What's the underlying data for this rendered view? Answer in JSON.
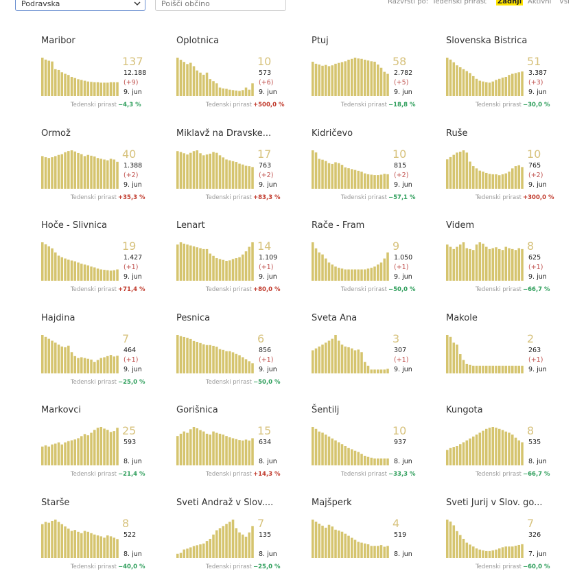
{
  "controls": {
    "region": "Podravska",
    "search_placeholder": "Poišči občino",
    "sort_label": "Razvrsti po:",
    "sort_options": [
      "Tedenski prirast",
      "Zadnji",
      "Aktivni",
      "Vsi"
    ],
    "sort_selected": 1
  },
  "cards": [
    {
      "name": "Maribor",
      "active": 137,
      "total": "12.188",
      "change": "(+9)",
      "date": "9. jun",
      "growth_label": "Tedenski prirast",
      "growth": "−4,3 %",
      "bars": [
        100,
        95,
        92,
        90,
        70,
        68,
        62,
        58,
        55,
        50,
        47,
        44,
        42,
        40,
        38,
        37,
        36,
        36,
        35,
        35,
        35,
        36,
        36,
        36
      ]
    },
    {
      "name": "Oplotnica",
      "active": 10,
      "total": "573",
      "change": "(+6)",
      "date": "9. jun",
      "growth_label": "Tedenski prirast",
      "growth": "+500,0 %",
      "bars": [
        90,
        85,
        80,
        75,
        78,
        70,
        60,
        55,
        50,
        55,
        40,
        35,
        30,
        20,
        18,
        17,
        15,
        14,
        13,
        12,
        14,
        20,
        15,
        30
      ]
    },
    {
      "name": "Ptuj",
      "active": 58,
      "total": "2.782",
      "change": "(+5)",
      "date": "9. jun",
      "growth_label": "Tedenski prirast",
      "growth": "−18,8 %",
      "bars": [
        85,
        80,
        78,
        75,
        77,
        74,
        76,
        80,
        82,
        84,
        86,
        90,
        92,
        95,
        93,
        92,
        90,
        88,
        86,
        85,
        78,
        70,
        60,
        55
      ]
    },
    {
      "name": "Slovenska Bistrica",
      "active": 51,
      "total": "3.387",
      "change": "(+3)",
      "date": "9. jun",
      "growth_label": "Tedenski prirast",
      "growth": "−30,0 %",
      "bars": [
        100,
        95,
        88,
        80,
        75,
        70,
        65,
        60,
        52,
        45,
        40,
        38,
        36,
        35,
        38,
        42,
        45,
        48,
        50,
        55,
        58,
        60,
        62,
        64
      ]
    },
    {
      "name": "Ormož",
      "active": 40,
      "total": "1.388",
      "change": "(+2)",
      "date": "9. jun",
      "growth_label": "Tedenski prirast",
      "growth": "+35,3 %",
      "bars": [
        85,
        82,
        80,
        82,
        85,
        88,
        90,
        95,
        98,
        100,
        97,
        93,
        90,
        85,
        88,
        86,
        84,
        80,
        78,
        76,
        74,
        78,
        76,
        70
      ]
    },
    {
      "name": "Miklavž na Dravske...",
      "active": 17,
      "total": "763",
      "change": "(+2)",
      "date": "9. jun",
      "growth_label": "Tedenski prirast",
      "growth": "+83,3 %",
      "bars": [
        90,
        88,
        85,
        82,
        86,
        90,
        92,
        85,
        80,
        82,
        84,
        88,
        86,
        80,
        75,
        70,
        68,
        66,
        64,
        60,
        58,
        55,
        54,
        52
      ]
    },
    {
      "name": "Kidričevo",
      "active": 10,
      "total": "815",
      "change": "(+2)",
      "date": "9. jun",
      "growth_label": "Tedenski prirast",
      "growth": "−57,1 %",
      "bars": [
        90,
        85,
        70,
        68,
        65,
        60,
        58,
        62,
        60,
        56,
        50,
        48,
        46,
        44,
        42,
        40,
        36,
        34,
        33,
        32,
        32,
        33,
        35,
        34
      ]
    },
    {
      "name": "Ruše",
      "active": 10,
      "total": "765",
      "change": "(+2)",
      "date": "9. jun",
      "growth_label": "Tedenski prirast",
      "growth": "+300,0 %",
      "bars": [
        65,
        70,
        75,
        80,
        82,
        85,
        80,
        60,
        50,
        45,
        40,
        38,
        35,
        33,
        32,
        32,
        30,
        32,
        34,
        38,
        45,
        50,
        52,
        48
      ]
    },
    {
      "name": "Hoče - Slivnica",
      "active": 19,
      "total": "1.427",
      "change": "(+1)",
      "date": "9. jun",
      "growth_label": "Tedenski prirast",
      "growth": "+71,4 %",
      "bars": [
        95,
        90,
        85,
        80,
        70,
        62,
        58,
        55,
        52,
        50,
        48,
        45,
        42,
        40,
        38,
        35,
        33,
        30,
        28,
        27,
        26,
        25,
        26,
        28
      ]
    },
    {
      "name": "Lenart",
      "active": 14,
      "total": "1.109",
      "change": "(+1)",
      "date": "9. jun",
      "growth_label": "Tedenski prirast",
      "growth": "+80,0 %",
      "bars": [
        80,
        85,
        82,
        80,
        78,
        76,
        74,
        72,
        70,
        70,
        60,
        55,
        50,
        48,
        46,
        44,
        45,
        48,
        50,
        52,
        58,
        65,
        75,
        85
      ]
    },
    {
      "name": "Rače - Fram",
      "active": 9,
      "total": "1.050",
      "change": "(+1)",
      "date": "9. jun",
      "growth_label": "Tedenski prirast",
      "growth": "−50,0 %",
      "bars": [
        95,
        80,
        70,
        65,
        55,
        45,
        40,
        35,
        32,
        30,
        28,
        28,
        28,
        28,
        28,
        28,
        28,
        30,
        32,
        35,
        40,
        45,
        55,
        70
      ]
    },
    {
      "name": "Videm",
      "active": 8,
      "total": "625",
      "change": "(+1)",
      "date": "9. jun",
      "growth_label": "Tedenski prirast",
      "growth": "−66,7 %",
      "bars": [
        80,
        75,
        70,
        75,
        80,
        85,
        72,
        70,
        68,
        80,
        85,
        82,
        75,
        70,
        72,
        74,
        70,
        68,
        75,
        72,
        70,
        68,
        72,
        70
      ]
    },
    {
      "name": "Hajdina",
      "active": 7,
      "total": "464",
      "change": "(+1)",
      "date": "9. jun",
      "growth_label": "Tedenski prirast",
      "growth": "−25,0 %",
      "bars": [
        100,
        95,
        90,
        85,
        80,
        75,
        70,
        68,
        72,
        55,
        45,
        40,
        42,
        40,
        38,
        36,
        30,
        35,
        40,
        42,
        45,
        48,
        44,
        46
      ]
    },
    {
      "name": "Pesnica",
      "active": 6,
      "total": "856",
      "change": "(+1)",
      "date": "9. jun",
      "growth_label": "Tedenski prirast",
      "growth": "−50,0 %",
      "bars": [
        95,
        92,
        90,
        88,
        85,
        80,
        78,
        75,
        72,
        70,
        70,
        68,
        66,
        60,
        58,
        55,
        55,
        52,
        48,
        45,
        40,
        35,
        30,
        25
      ]
    },
    {
      "name": "Sveta Ana",
      "active": 3,
      "total": "307",
      "change": "(+1)",
      "date": "9. jun",
      "bars": [
        60,
        65,
        70,
        75,
        80,
        85,
        90,
        100,
        85,
        75,
        70,
        68,
        65,
        60,
        62,
        55,
        30,
        20,
        10,
        10,
        10,
        10,
        10,
        12
      ]
    },
    {
      "name": "Makole",
      "active": 2,
      "total": "263",
      "change": "(+1)",
      "date": "9. jun",
      "bars": [
        100,
        95,
        80,
        75,
        50,
        35,
        25,
        22,
        20,
        20,
        20,
        20,
        20,
        20,
        20,
        20,
        20,
        20,
        20,
        20,
        20,
        20,
        20,
        20
      ]
    },
    {
      "name": "Markovci",
      "active": 25,
      "total": "593",
      "date": "8. jun",
      "growth_label": "Tedenski prirast",
      "growth": "−21,4 %",
      "bars": [
        45,
        48,
        45,
        50,
        52,
        55,
        50,
        55,
        58,
        60,
        62,
        65,
        70,
        75,
        72,
        78,
        85,
        90,
        92,
        88,
        85,
        80,
        82,
        90
      ]
    },
    {
      "name": "Gorišnica",
      "active": 15,
      "total": "634",
      "date": "8. jun",
      "growth_label": "Tedenski prirast",
      "growth": "+14,3 %",
      "bars": [
        65,
        70,
        75,
        72,
        80,
        85,
        82,
        78,
        75,
        70,
        68,
        75,
        72,
        70,
        68,
        65,
        62,
        60,
        58,
        56,
        55,
        57,
        55,
        60
      ]
    },
    {
      "name": "Šentilj",
      "active": 10,
      "total": "937",
      "date": "8. jun",
      "growth_label": "Tedenski prirast",
      "growth": "−33,3 %",
      "bars": [
        100,
        95,
        88,
        85,
        80,
        75,
        70,
        65,
        60,
        55,
        50,
        45,
        42,
        38,
        35,
        30,
        25,
        22,
        20,
        18,
        18,
        18,
        18,
        18
      ]
    },
    {
      "name": "Kungota",
      "active": 8,
      "total": "535",
      "date": "8. jun",
      "growth_label": "Tedenski prirast",
      "growth": "−66,7 %",
      "bars": [
        40,
        45,
        48,
        50,
        55,
        60,
        65,
        70,
        75,
        80,
        85,
        90,
        95,
        98,
        100,
        98,
        95,
        92,
        88,
        85,
        80,
        72,
        65,
        60
      ]
    },
    {
      "name": "Starše",
      "active": 8,
      "total": "522",
      "date": "8. jun",
      "growth_label": "Tedenski prirast",
      "growth": "−40,0 %",
      "bars": [
        75,
        80,
        78,
        82,
        85,
        80,
        75,
        70,
        65,
        60,
        62,
        58,
        55,
        60,
        58,
        55,
        52,
        50,
        48,
        45,
        50,
        48,
        45,
        42
      ]
    },
    {
      "name": "Sveti Andraž v Slov....",
      "active": 7,
      "total": "135",
      "date": "8. jun",
      "growth_label": "Tedenski prirast",
      "growth": "−25,0 %",
      "bars": [
        10,
        12,
        20,
        22,
        25,
        28,
        30,
        32,
        34,
        40,
        45,
        55,
        65,
        70,
        75,
        80,
        85,
        90,
        70,
        60,
        55,
        50,
        60,
        75
      ]
    },
    {
      "name": "Majšperk",
      "active": 4,
      "total": "519",
      "date": "8. jun",
      "bars": [
        95,
        90,
        85,
        80,
        75,
        82,
        78,
        70,
        68,
        65,
        60,
        55,
        50,
        45,
        40,
        38,
        36,
        34,
        30,
        30,
        30,
        32,
        28,
        30
      ]
    },
    {
      "name": "Sveti Jurij v Slov. go...",
      "active": 7,
      "total": "326",
      "date": "7. jun",
      "growth_label": "Tedenski prirast",
      "growth": "−60,0 %",
      "bars": [
        100,
        95,
        85,
        70,
        60,
        50,
        40,
        35,
        30,
        25,
        22,
        20,
        18,
        18,
        20,
        22,
        25,
        28,
        30,
        30,
        30,
        32,
        34,
        36
      ]
    }
  ]
}
